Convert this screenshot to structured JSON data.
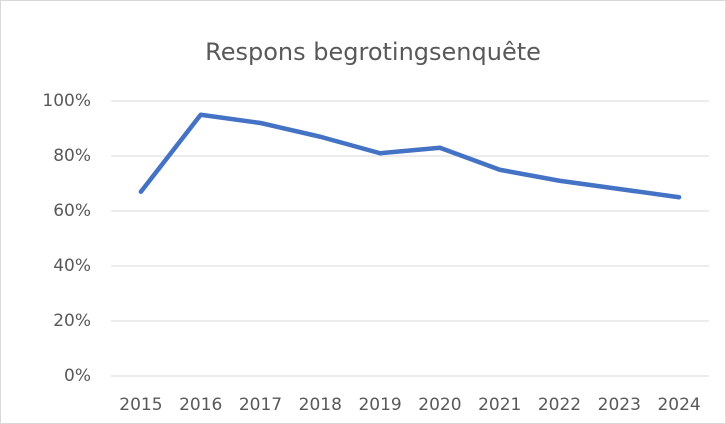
{
  "chart_data": {
    "type": "line",
    "title": "Respons begrotingsenquête",
    "categories": [
      "2015",
      "2016",
      "2017",
      "2018",
      "2019",
      "2020",
      "2021",
      "2022",
      "2023",
      "2024"
    ],
    "series": [
      {
        "name": "Respons",
        "color": "#4472c4",
        "values": [
          67,
          95,
          92,
          87,
          81,
          83,
          75,
          71,
          68,
          65
        ]
      }
    ],
    "ylim": [
      0,
      100
    ],
    "yticks": [
      {
        "value": 0,
        "label": "0%"
      },
      {
        "value": 20,
        "label": "20%"
      },
      {
        "value": 40,
        "label": "40%"
      },
      {
        "value": 60,
        "label": "60%"
      },
      {
        "value": 80,
        "label": "80%"
      },
      {
        "value": 100,
        "label": "100%"
      }
    ],
    "grid": true
  }
}
